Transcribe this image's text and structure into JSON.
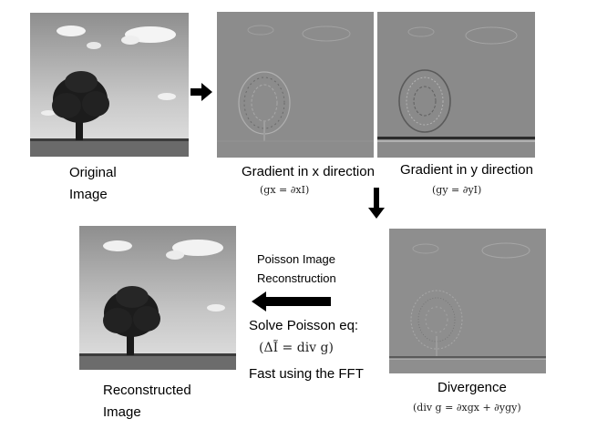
{
  "labels": {
    "original": [
      "Original",
      "Image"
    ],
    "grad_x": "Gradient in x direction",
    "grad_y": "Gradient in y direction",
    "grad_x_eq": "(gx = ∂xI)",
    "grad_y_eq": "(gy = ∂yI)",
    "poisson_title": [
      "Poisson Image",
      "Reconstruction"
    ],
    "solve": "Solve Poisson eq:",
    "solve_eq": "(ΔĨ = div g)",
    "fft": "Fast using the FFT",
    "reconstructed": [
      "Reconstructed",
      "Image"
    ],
    "divergence": "Divergence",
    "divergence_eq": "(div g = ∂xgx + ∂ygy)"
  },
  "colors": {
    "sky_top": "#9a9a9a",
    "sky_bottom": "#e0e0e0",
    "gradient_gray": "#8c8c8c",
    "arrow": "#000000"
  },
  "panels": [
    {
      "name": "original-image",
      "kind": "photo"
    },
    {
      "name": "gradient-x-image",
      "kind": "gradient"
    },
    {
      "name": "gradient-y-image",
      "kind": "gradient"
    },
    {
      "name": "divergence-image",
      "kind": "gradient"
    },
    {
      "name": "reconstructed-image",
      "kind": "photo"
    }
  ]
}
